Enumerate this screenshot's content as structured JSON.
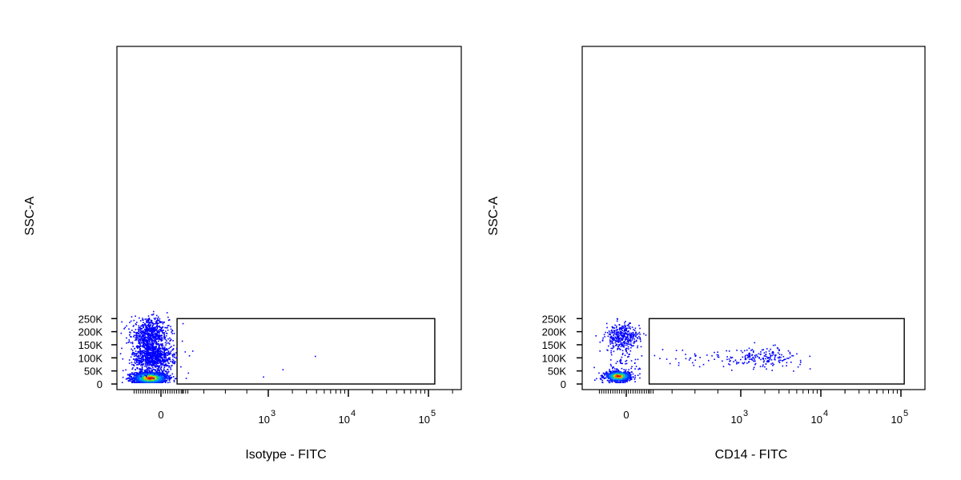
{
  "chart_data": [
    {
      "type": "scatter",
      "xlabel": "Isotype - FITC",
      "ylabel": "SSC-A",
      "x_scale": "biexponential",
      "ylim": [
        0,
        262144
      ],
      "y_ticks": [
        {
          "v": 0,
          "label": "0"
        },
        {
          "v": 50000,
          "label": "50K"
        },
        {
          "v": 100000,
          "label": "100K"
        },
        {
          "v": 150000,
          "label": "150K"
        },
        {
          "v": 200000,
          "label": "200K"
        },
        {
          "v": 250000,
          "label": "250K"
        }
      ],
      "x_ticks": [
        {
          "label": "0",
          "base": "",
          "exp": ""
        },
        {
          "label": "",
          "base": "10",
          "exp": "3"
        },
        {
          "label": "",
          "base": "10",
          "exp": "4"
        },
        {
          "label": "",
          "base": "10",
          "exp": "5"
        }
      ],
      "gate": {
        "shape": "rectangle",
        "x_from": 150,
        "x_to": 120000,
        "y_from": 0,
        "y_to": 250000
      },
      "populations": [
        {
          "name": "",
          "x_center": -80,
          "x_spread": 60,
          "y_center": 25000,
          "y_spread": 12000,
          "count": 1500,
          "density": "high"
        },
        {
          "name": "",
          "x_center": -60,
          "x_spread": 70,
          "y_center": 105000,
          "y_spread": 28000,
          "count": 900,
          "density": "low"
        },
        {
          "name": "",
          "x_center": -80,
          "x_spread": 65,
          "y_center": 190000,
          "y_spread": 30000,
          "count": 700,
          "density": "low"
        }
      ],
      "gate_events": [
        [
          200,
          233000
        ],
        [
          220,
          125000
        ],
        [
          290,
          128000
        ],
        [
          260,
          110000
        ],
        [
          3800,
          108000
        ],
        [
          180,
          68000
        ],
        [
          1500,
          57000
        ],
        [
          250,
          44000
        ],
        [
          230,
          24000
        ],
        [
          950,
          29000
        ]
      ]
    },
    {
      "type": "scatter",
      "xlabel": "CD14 - FITC",
      "ylabel": "SSC-A",
      "x_scale": "biexponential",
      "ylim": [
        0,
        262144
      ],
      "y_ticks": [
        {
          "v": 0,
          "label": "0"
        },
        {
          "v": 50000,
          "label": "50K"
        },
        {
          "v": 100000,
          "label": "100K"
        },
        {
          "v": 150000,
          "label": "150K"
        },
        {
          "v": 200000,
          "label": "200K"
        },
        {
          "v": 250000,
          "label": "250K"
        }
      ],
      "x_ticks": [
        {
          "label": "0",
          "base": "",
          "exp": ""
        },
        {
          "label": "",
          "base": "10",
          "exp": "3"
        },
        {
          "label": "",
          "base": "10",
          "exp": "4"
        },
        {
          "label": "",
          "base": "10",
          "exp": "5"
        }
      ],
      "gate": {
        "shape": "rectangle",
        "x_from": 200,
        "x_to": 110000,
        "y_from": 0,
        "y_to": 250000
      },
      "populations": [
        {
          "name": "",
          "x_center": -60,
          "x_spread": 45,
          "y_center": 32000,
          "y_spread": 10000,
          "count": 700,
          "density": "high"
        },
        {
          "name": "",
          "x_center": -30,
          "x_spread": 60,
          "y_center": 180000,
          "y_spread": 26000,
          "count": 380,
          "density": "low"
        },
        {
          "name": "",
          "x_center": 1600,
          "x_spread": 0.28,
          "y_center": 105000,
          "y_spread": 18000,
          "count": 230,
          "density": "low"
        },
        {
          "name": "",
          "x_center": -20,
          "x_spread": 70,
          "y_center": 80000,
          "y_spread": 20000,
          "count": 50,
          "density": "low"
        }
      ],
      "gate_events": []
    }
  ]
}
